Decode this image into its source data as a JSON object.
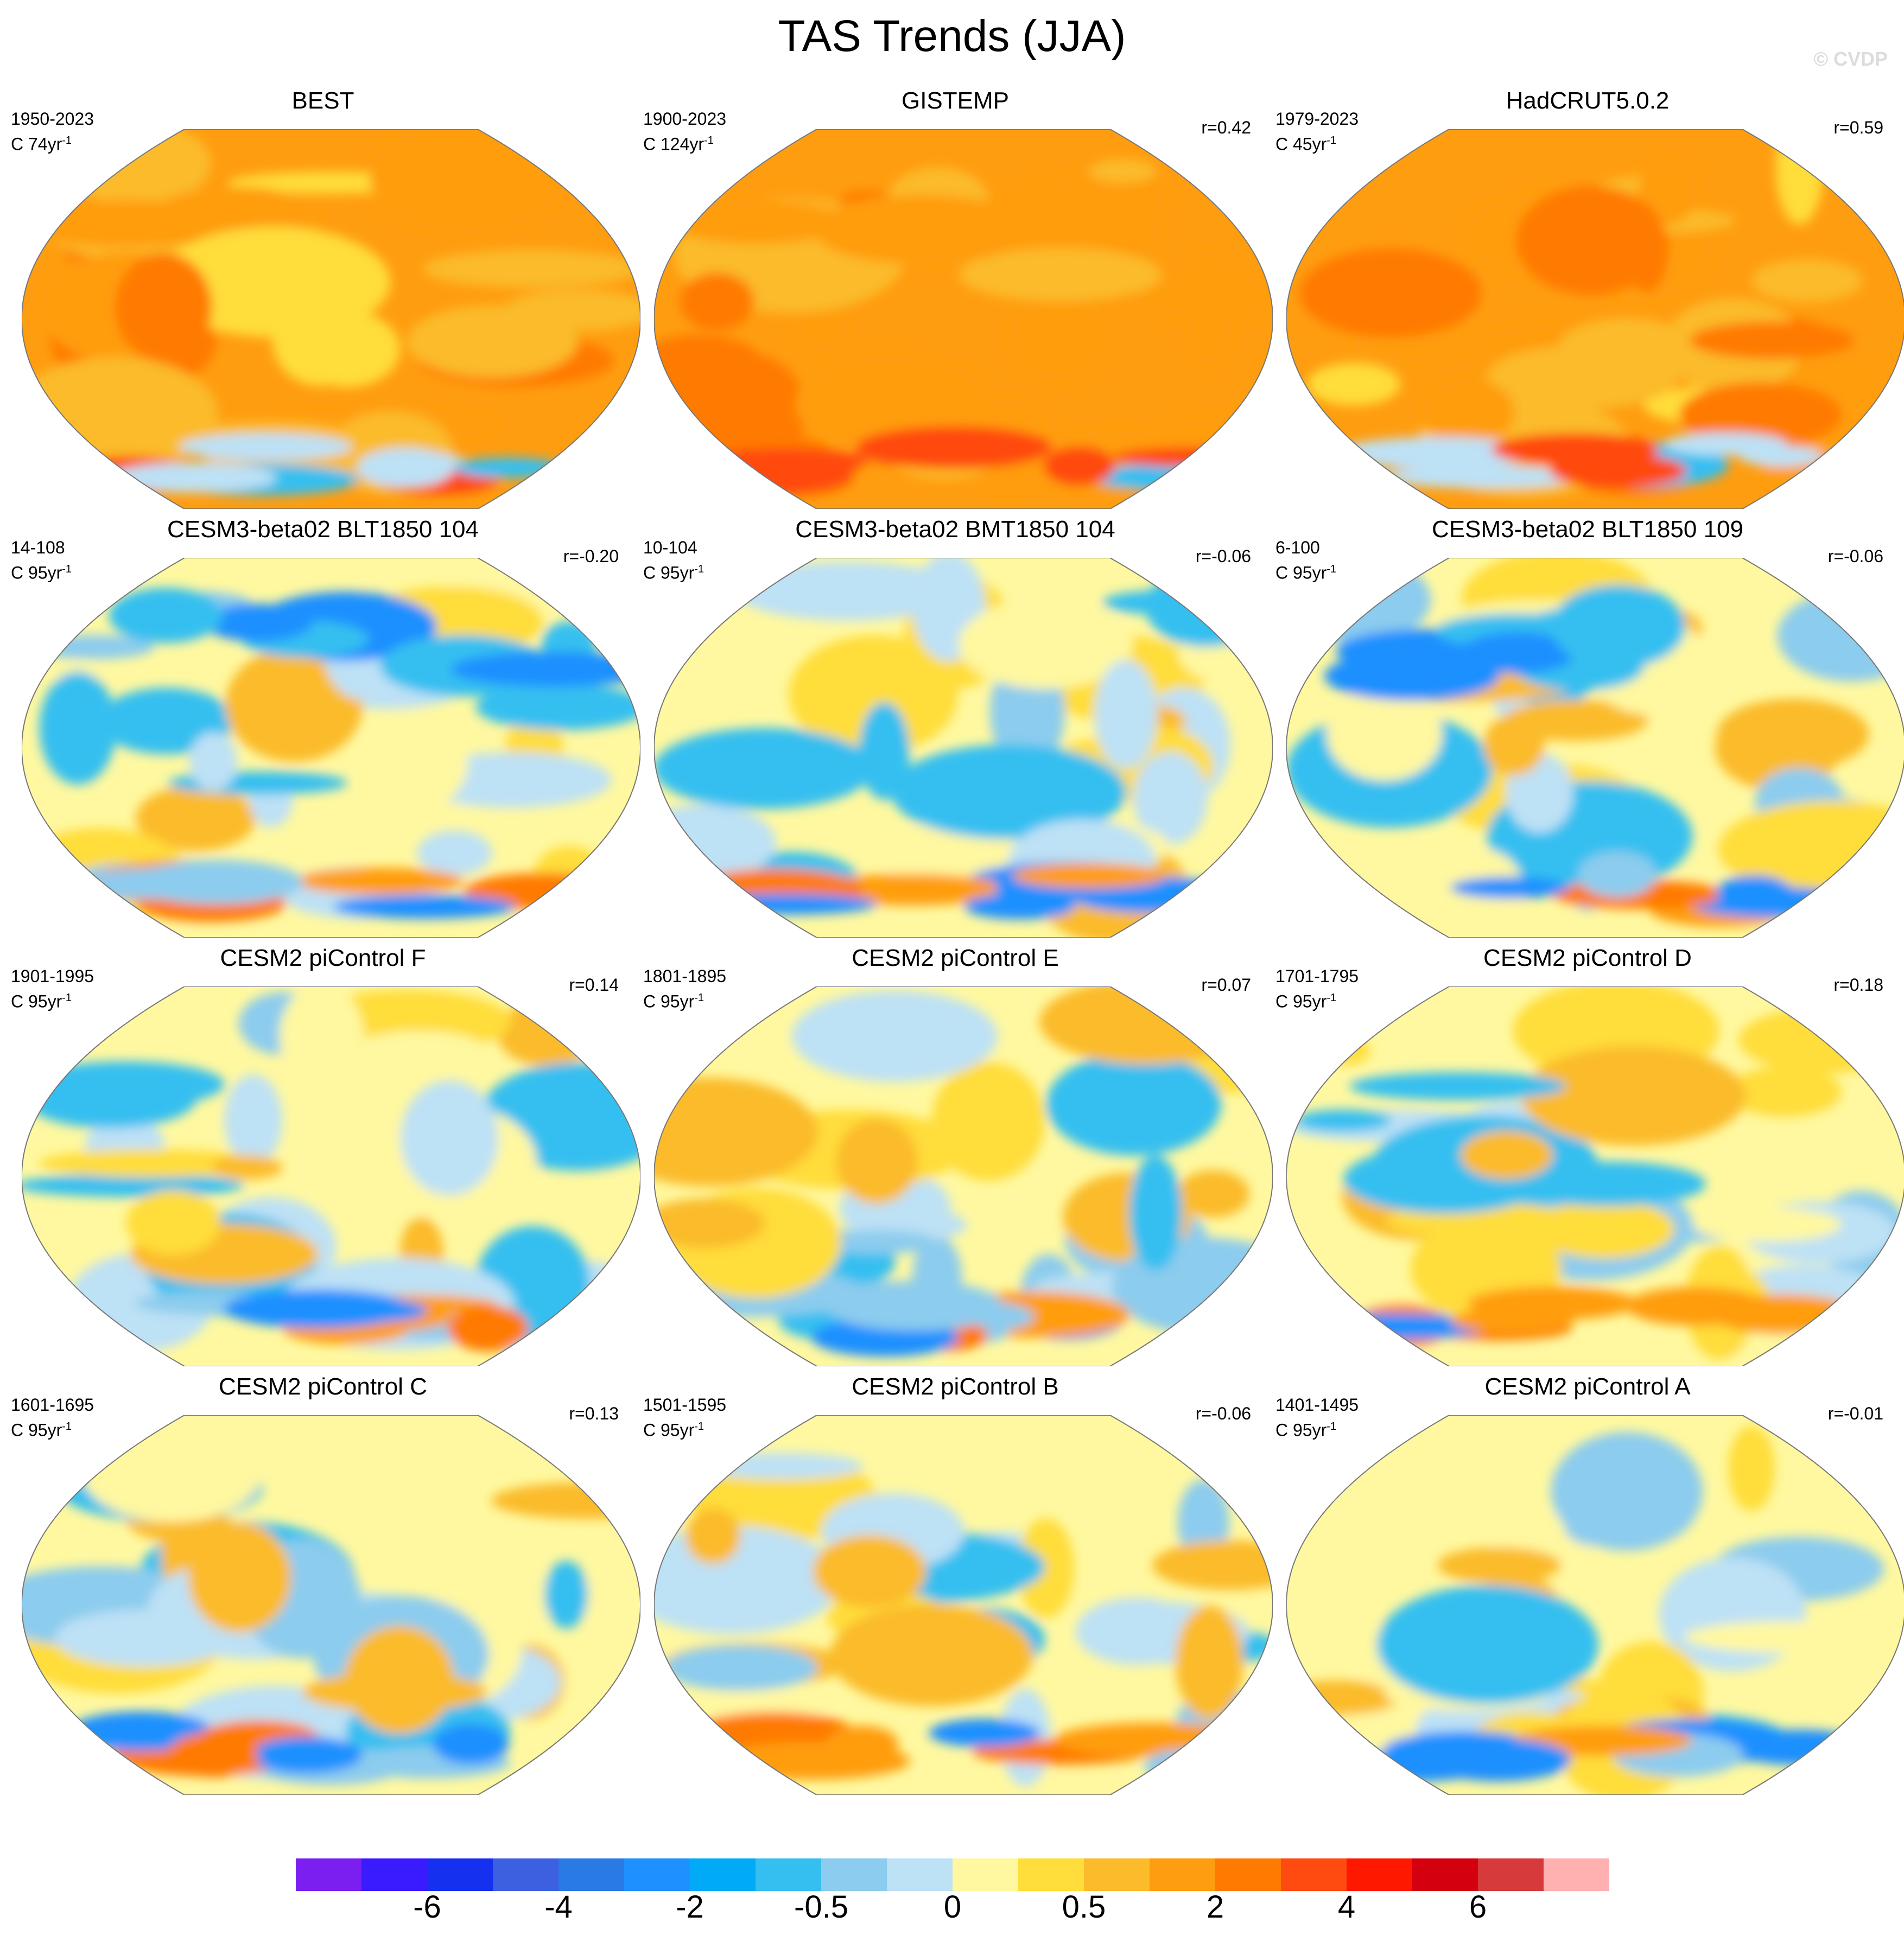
{
  "title": "TAS Trends (JJA)",
  "copyright": "© CVDP",
  "colors": {
    "neg6": "#7a1ff0",
    "neg5": "#3a1aff",
    "neg4b": "#1630f0",
    "neg4": "#3d60e0",
    "neg3": "#2a7ae6",
    "neg2b": "#1e90ff",
    "neg2": "#00aaf7",
    "neg1": "#34bff0",
    "neg05": "#8cccee",
    "neg0": "#bde1f5",
    "pos0": "#fff8a0",
    "pos05": "#ffdd3a",
    "pos1": "#fbbb2a",
    "pos2": "#ff9d10",
    "pos3": "#ff7a00",
    "pos4": "#ff4a10",
    "pos5": "#ff1800",
    "pos6": "#d40010",
    "pos7": "#d63a3a",
    "pos8": "#ffb0b0"
  },
  "panels": [
    {
      "title": "BEST",
      "years": "1950-2023",
      "units": "C 74yr",
      "r": "",
      "pattern": "warm-best"
    },
    {
      "title": "GISTEMP",
      "years": "1900-2023",
      "units": "C 124yr",
      "r": "r=0.42",
      "pattern": "warm-gis"
    },
    {
      "title": "HadCRUT5.0.2",
      "years": "1979-2023",
      "units": "C 45yr",
      "r": "r=0.59",
      "pattern": "warm-had"
    },
    {
      "title": "CESM3-beta02 BLT1850 104",
      "years": "14-108",
      "units": "C 95yr",
      "r": "r=-0.20",
      "pattern": "mix-cold-north"
    },
    {
      "title": "CESM3-beta02 BMT1850 104",
      "years": "10-104",
      "units": "C 95yr",
      "r": "r=-0.06",
      "pattern": "mix-a"
    },
    {
      "title": "CESM3-beta02 BLT1850 109",
      "years": "6-100",
      "units": "C 95yr",
      "r": "r=-0.06",
      "pattern": "mix-b"
    },
    {
      "title": "CESM2 piControl F",
      "years": "1901-1995",
      "units": "C 95yr",
      "r": "r=0.14",
      "pattern": "mix-c"
    },
    {
      "title": "CESM2 piControl E",
      "years": "1801-1895",
      "units": "C 95yr",
      "r": "r=0.07",
      "pattern": "mix-d"
    },
    {
      "title": "CESM2 piControl D",
      "years": "1701-1795",
      "units": "C 95yr",
      "r": "r=0.18",
      "pattern": "mix-e"
    },
    {
      "title": "CESM2 piControl C",
      "years": "1601-1695",
      "units": "C 95yr",
      "r": "r=0.13",
      "pattern": "mix-f"
    },
    {
      "title": "CESM2 piControl B",
      "years": "1501-1595",
      "units": "C 95yr",
      "r": "r=-0.06",
      "pattern": "mix-g"
    },
    {
      "title": "CESM2 piControl A",
      "years": "1401-1495",
      "units": "C 95yr",
      "r": "r=-0.01",
      "pattern": "mix-h"
    }
  ],
  "chart_data": {
    "type": "heatmap",
    "title": "TAS Trends (JJA)",
    "colorbar": {
      "boxes": 20,
      "labels": [
        "-6",
        "-4",
        "-2",
        "-0.5",
        "0",
        "0.5",
        "2",
        "4",
        "6"
      ],
      "colors": [
        "#7a1ff0",
        "#3a1aff",
        "#1630f0",
        "#3d60e0",
        "#2a7ae6",
        "#1e90ff",
        "#00aaf7",
        "#34bff0",
        "#8cccee",
        "#bde1f5",
        "#fff8a0",
        "#ffdd3a",
        "#fbbb2a",
        "#ff9d10",
        "#ff7a00",
        "#ff4a10",
        "#ff1800",
        "#d40010",
        "#d63a3a",
        "#ffb0b0"
      ]
    }
  }
}
